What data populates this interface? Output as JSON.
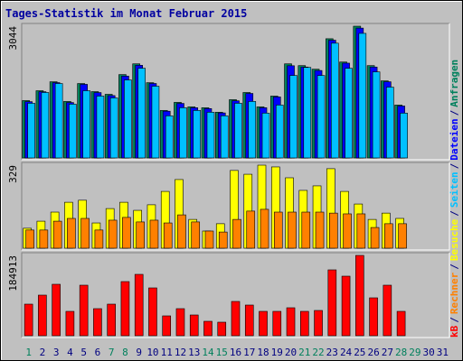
{
  "chart_data": {
    "type": "bar",
    "title": "Tages-Statistik im Monat Februar 2015",
    "categories": [
      "1",
      "2",
      "3",
      "4",
      "5",
      "6",
      "7",
      "8",
      "9",
      "10",
      "11",
      "12",
      "13",
      "14",
      "15",
      "16",
      "17",
      "18",
      "19",
      "20",
      "21",
      "22",
      "23",
      "24",
      "25",
      "26",
      "27",
      "28",
      "29",
      "30",
      "31"
    ],
    "category_colors": [
      "#00805c",
      "#000080",
      "#000080",
      "#000080",
      "#000080",
      "#000080",
      "#00805c",
      "#00805c",
      "#000080",
      "#000080",
      "#000080",
      "#000080",
      "#000080",
      "#00805c",
      "#00805c",
      "#000080",
      "#000080",
      "#000080",
      "#000080",
      "#000080",
      "#00805c",
      "#00805c",
      "#000080",
      "#000080",
      "#000080",
      "#000080",
      "#000080",
      "#00805c",
      "#00805c",
      "#000080",
      "#000080"
    ],
    "legend_separator": "/",
    "panels": [
      {
        "ylim": [
          0,
          3044
        ],
        "yticks": [
          3044
        ],
        "series": [
          {
            "name": "Anfragen",
            "color": "#00805c",
            "values": [
              1325,
              1553,
              1760,
              1305,
              1719,
              1532,
              1470,
              1926,
              2174,
              1739,
              1097,
              1284,
              1180,
              1160,
              1056,
              1346,
              1512,
              1180,
              1429,
              2174,
              2133,
              2050,
              2754,
              2216,
              3044,
              2133,
              1781,
              1222,
              null,
              null,
              null
            ]
          },
          {
            "name": "Dateien",
            "color": "#0000ff",
            "values": [
              1300,
              1530,
              1740,
              1280,
              1700,
              1510,
              1440,
              1890,
              2140,
              1720,
              1080,
              1260,
              1160,
              1140,
              1040,
              1320,
              1490,
              1160,
              1410,
              2130,
              2100,
              2020,
              2720,
              2190,
              3000,
              2100,
              1760,
              1200,
              null,
              null,
              null
            ]
          },
          {
            "name": "Seiten",
            "color": "#00c0ff",
            "values": [
              1263,
              1512,
              1719,
              1242,
              1553,
              1429,
              1387,
              1802,
              2071,
              1657,
              973,
              1160,
              1097,
              1056,
              973,
              1263,
              1305,
              1035,
              1222,
              1905,
              2091,
              1905,
              2651,
              2071,
              2878,
              1988,
              1636,
              1035,
              null,
              null,
              null
            ]
          }
        ]
      },
      {
        "ylim": [
          0,
          329
        ],
        "yticks": [
          329
        ],
        "series": [
          {
            "name": "Besuche",
            "color": "#ffff00",
            "values": [
              79,
              107,
              143,
              182,
              190,
              100,
              157,
              182,
              150,
              172,
              225,
              272,
              114,
              68,
              97,
              308,
              293,
              329,
              322,
              279,
              229,
              247,
              315,
              225,
              175,
              114,
              139,
              118,
              null,
              null,
              null
            ]
          },
          {
            "name": "Rechner",
            "color": "#ff8000",
            "values": [
              72,
              72,
              107,
              118,
              118,
              72,
              111,
              122,
              104,
              111,
              100,
              132,
              104,
              68,
              64,
              114,
              147,
              154,
              143,
              143,
              143,
              143,
              139,
              136,
              136,
              82,
              97,
              97,
              null,
              null,
              null
            ]
          }
        ]
      },
      {
        "ylim": [
          0,
          184913
        ],
        "yticks": [
          184913
        ],
        "series": [
          {
            "name": "kB",
            "color": "#ff0000",
            "values": [
              72719,
              93495,
              118426,
              56097,
              116349,
              62330,
              72719,
              124660,
              141280,
              110117,
              45709,
              62330,
              47787,
              33243,
              31165,
              78951,
              70641,
              56097,
              56097,
              64408,
              56097,
              58175,
              151668,
              137127,
              184913,
              87263,
              116349,
              56097,
              null,
              null,
              null
            ]
          }
        ]
      }
    ]
  }
}
